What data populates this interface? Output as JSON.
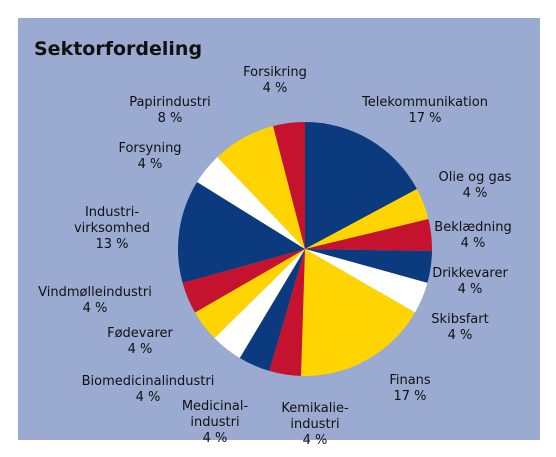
{
  "chart_data": {
    "type": "pie",
    "title": "Sektorfordeling",
    "categories": [
      "Telekommunikation",
      "Olie og gas",
      "Beklædning",
      "Drikkevarer",
      "Skibsfart",
      "Finans",
      "Kemikalie-\nindustri",
      "Medicinal-\nindustri",
      "Biomedicinalindustri",
      "Fødevarer",
      "Vindmølleindustri",
      "Industri-\nvirksomhed",
      "Forsyning",
      "Papirindustri",
      "Forsikring"
    ],
    "values": [
      17,
      4,
      4,
      4,
      4,
      17,
      4,
      4,
      4,
      4,
      4,
      13,
      4,
      8,
      4
    ],
    "value_labels": [
      "17 %",
      "4 %",
      "4 %",
      "4 %",
      "4 %",
      "17 %",
      "4 %",
      "4 %",
      "4 %",
      "4 %",
      "4 %",
      "13 %",
      "4 %",
      "8 %",
      "4 %"
    ],
    "colors": [
      "#0b3a7e",
      "#ffd400",
      "#c4122f",
      "#0b3a7e",
      "#ffffff",
      "#ffd400",
      "#c4122f",
      "#0b3a7e",
      "#ffffff",
      "#ffd400",
      "#c4122f",
      "#0b3a7e",
      "#ffffff",
      "#ffd400",
      "#c4122f"
    ]
  }
}
